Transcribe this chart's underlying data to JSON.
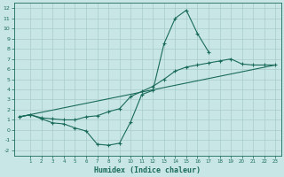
{
  "xlabel": "Humidex (Indice chaleur)",
  "xlim": [
    -0.5,
    23.5
  ],
  "ylim": [
    -2.5,
    12.5
  ],
  "xticks": [
    1,
    2,
    3,
    4,
    5,
    6,
    7,
    8,
    9,
    10,
    11,
    12,
    13,
    14,
    15,
    16,
    17,
    18,
    19,
    20,
    21,
    22,
    23
  ],
  "yticks": [
    -2,
    -1,
    0,
    1,
    2,
    3,
    4,
    5,
    6,
    7,
    8,
    9,
    10,
    11,
    12
  ],
  "bg_color": "#c8e6e6",
  "grid_color": "#a8cccc",
  "line_color": "#1a6b5a",
  "line1_x": [
    0,
    1,
    2,
    3,
    4,
    5,
    6,
    7,
    8,
    9,
    10,
    11,
    12,
    13,
    14,
    15,
    16,
    17
  ],
  "line1_y": [
    1.3,
    1.5,
    1.1,
    0.7,
    0.6,
    0.2,
    -0.1,
    -1.4,
    -1.5,
    -1.3,
    0.8,
    3.5,
    3.9,
    8.5,
    11.0,
    11.8,
    9.5,
    7.7
  ],
  "line2_x": [
    0,
    1,
    2,
    3,
    4,
    5,
    6,
    7,
    8,
    9,
    10,
    11,
    12,
    13,
    14,
    15,
    16,
    17,
    18,
    19,
    20,
    21,
    22,
    23
  ],
  "line2_y": [
    1.3,
    1.5,
    1.2,
    1.1,
    1.0,
    1.0,
    1.3,
    1.4,
    1.8,
    2.1,
    3.3,
    3.8,
    4.3,
    5.0,
    5.8,
    6.2,
    6.4,
    6.6,
    6.8,
    7.0,
    6.5,
    6.4,
    6.4,
    6.4
  ],
  "line3_x": [
    0,
    23
  ],
  "line3_y": [
    1.3,
    6.4
  ]
}
